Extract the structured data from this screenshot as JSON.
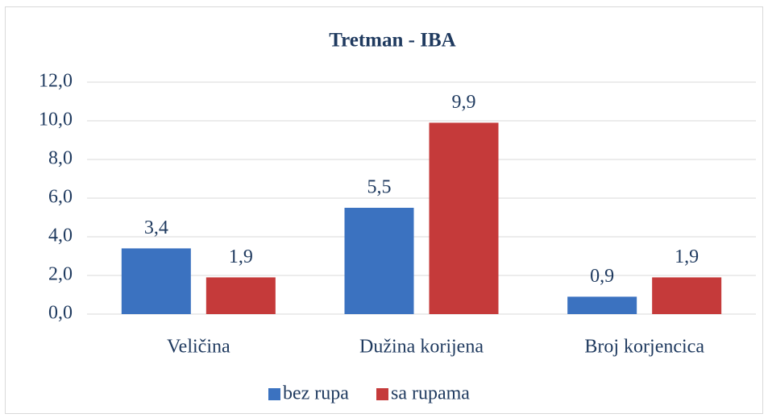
{
  "chart_data": {
    "type": "bar",
    "title": "Tretman - IBA",
    "categories": [
      "Veličina",
      "Dužina korijena",
      "Broj korjencica"
    ],
    "series": [
      {
        "name": "bez rupa",
        "color": "#3b72c0",
        "values": [
          3.4,
          5.5,
          0.9
        ],
        "value_labels": [
          "3,4",
          "5,5",
          "0,9"
        ]
      },
      {
        "name": "sa rupama",
        "color": "#c53a3a",
        "values": [
          1.9,
          9.9,
          1.9
        ],
        "value_labels": [
          "1,9",
          "9,9",
          "1,9"
        ]
      }
    ],
    "ylim": [
      0,
      12
    ],
    "yticks": [
      {
        "value": 0,
        "label": "0,0"
      },
      {
        "value": 2,
        "label": "2,0"
      },
      {
        "value": 4,
        "label": "4,0"
      },
      {
        "value": 6,
        "label": "6,0"
      },
      {
        "value": 8,
        "label": "8,0"
      },
      {
        "value": 10,
        "label": "10,0"
      },
      {
        "value": 12,
        "label": "12,0"
      }
    ],
    "grid": true,
    "legend": "bottom"
  }
}
